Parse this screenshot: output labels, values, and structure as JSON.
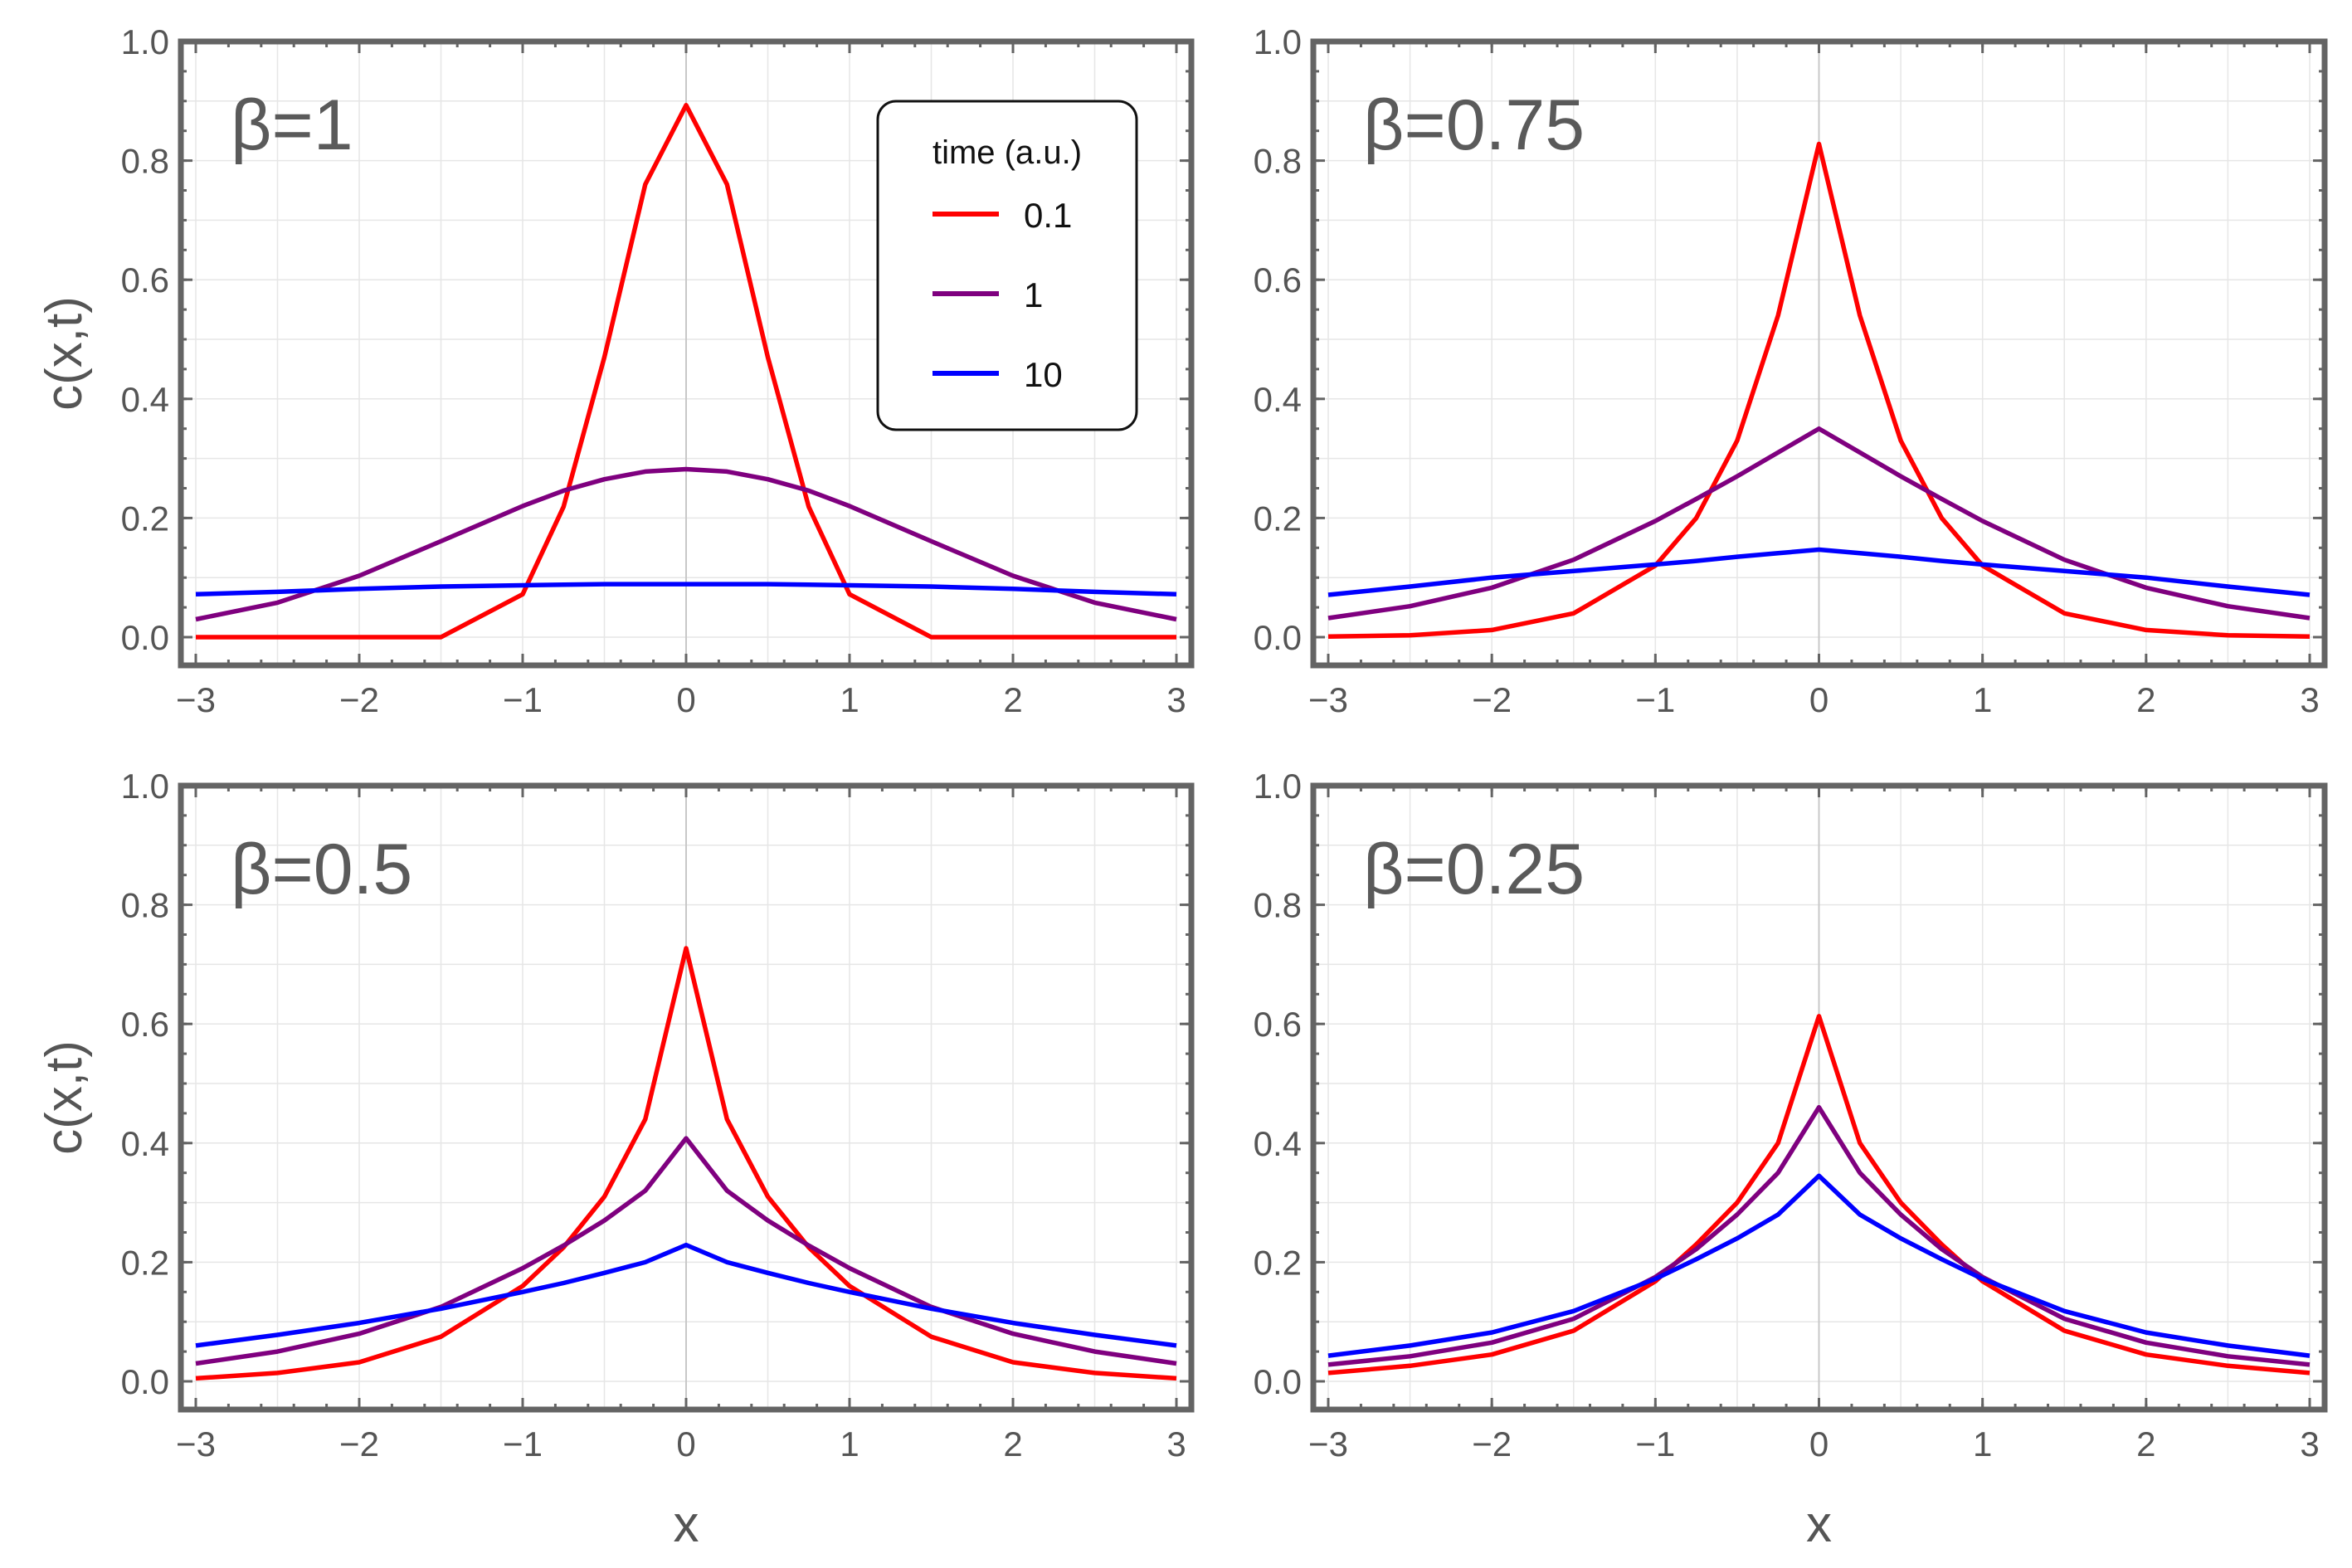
{
  "chart_data": [
    {
      "type": "line",
      "panel": "top-left",
      "label": "β=1",
      "beta": 1,
      "xlabel": "",
      "ylabel": "c(x,t)",
      "xlim": [
        -3,
        3
      ],
      "ylim": [
        0,
        1
      ],
      "xticks": [
        "−3",
        "−2",
        "−1",
        "0",
        "1",
        "2",
        "3"
      ],
      "yticks": [
        "0.0",
        "0.2",
        "0.4",
        "0.6",
        "0.8",
        "1.0"
      ],
      "x": [
        -3,
        -2.5,
        -2,
        -1.5,
        -1,
        -0.75,
        -0.5,
        -0.25,
        0,
        0.25,
        0.5,
        0.75,
        1,
        1.5,
        2,
        2.5,
        3
      ],
      "series": [
        {
          "name": "0.1",
          "color": "#ff0000",
          "values": [
            0.0,
            0.0,
            0.0,
            0.0,
            0.072,
            0.219,
            0.47,
            0.76,
            0.893,
            0.76,
            0.47,
            0.219,
            0.072,
            0.0,
            0.0,
            0.0,
            0.0
          ]
        },
        {
          "name": "1",
          "color": "#7f007f",
          "values": [
            0.03,
            0.058,
            0.103,
            0.161,
            0.22,
            0.246,
            0.265,
            0.278,
            0.282,
            0.278,
            0.265,
            0.246,
            0.22,
            0.161,
            0.103,
            0.058,
            0.03
          ]
        },
        {
          "name": "10",
          "color": "#0000ff",
          "values": [
            0.072,
            0.076,
            0.081,
            0.085,
            0.087,
            0.088,
            0.089,
            0.089,
            0.089,
            0.089,
            0.089,
            0.088,
            0.087,
            0.085,
            0.081,
            0.076,
            0.072
          ]
        }
      ]
    },
    {
      "type": "line",
      "panel": "top-right",
      "label": "β=0.75",
      "beta": 0.75,
      "xlabel": "",
      "ylabel": "",
      "xlim": [
        -3,
        3
      ],
      "ylim": [
        0,
        1
      ],
      "xticks": [
        "−3",
        "−2",
        "−1",
        "0",
        "1",
        "2",
        "3"
      ],
      "yticks": [
        "0.0",
        "0.2",
        "0.4",
        "0.6",
        "0.8",
        "1.0"
      ],
      "x": [
        -3,
        -2.5,
        -2,
        -1.5,
        -1,
        -0.75,
        -0.5,
        -0.25,
        0,
        0.25,
        0.5,
        0.75,
        1,
        1.5,
        2,
        2.5,
        3
      ],
      "series": [
        {
          "name": "0.1",
          "color": "#ff0000",
          "values": [
            0.001,
            0.003,
            0.012,
            0.04,
            0.12,
            0.2,
            0.33,
            0.54,
            0.828,
            0.54,
            0.33,
            0.2,
            0.12,
            0.04,
            0.012,
            0.003,
            0.001
          ]
        },
        {
          "name": "1",
          "color": "#7f007f",
          "values": [
            0.032,
            0.052,
            0.083,
            0.13,
            0.195,
            0.232,
            0.27,
            0.31,
            0.35,
            0.31,
            0.27,
            0.232,
            0.195,
            0.13,
            0.083,
            0.052,
            0.032
          ]
        },
        {
          "name": "10",
          "color": "#0000ff",
          "values": [
            0.071,
            0.085,
            0.1,
            0.111,
            0.122,
            0.128,
            0.135,
            0.141,
            0.147,
            0.141,
            0.135,
            0.128,
            0.122,
            0.111,
            0.1,
            0.085,
            0.071
          ]
        }
      ]
    },
    {
      "type": "line",
      "panel": "bottom-left",
      "label": "β=0.5",
      "beta": 0.5,
      "xlabel": "x",
      "ylabel": "c(x,t)",
      "xlim": [
        -3,
        3
      ],
      "ylim": [
        0,
        1
      ],
      "xticks": [
        "−3",
        "−2",
        "−1",
        "0",
        "1",
        "2",
        "3"
      ],
      "yticks": [
        "0.0",
        "0.2",
        "0.4",
        "0.6",
        "0.8",
        "1.0"
      ],
      "x": [
        -3,
        -2.5,
        -2,
        -1.5,
        -1,
        -0.75,
        -0.5,
        -0.25,
        0,
        0.25,
        0.5,
        0.75,
        1,
        1.5,
        2,
        2.5,
        3
      ],
      "series": [
        {
          "name": "0.1",
          "color": "#ff0000",
          "values": [
            0.005,
            0.014,
            0.032,
            0.075,
            0.16,
            0.225,
            0.31,
            0.44,
            0.727,
            0.44,
            0.31,
            0.225,
            0.16,
            0.075,
            0.032,
            0.014,
            0.005
          ]
        },
        {
          "name": "1",
          "color": "#7f007f",
          "values": [
            0.03,
            0.05,
            0.08,
            0.125,
            0.19,
            0.228,
            0.27,
            0.32,
            0.408,
            0.32,
            0.27,
            0.228,
            0.19,
            0.125,
            0.08,
            0.05,
            0.03
          ]
        },
        {
          "name": "10",
          "color": "#0000ff",
          "values": [
            0.06,
            0.078,
            0.098,
            0.122,
            0.15,
            0.165,
            0.182,
            0.2,
            0.229,
            0.2,
            0.182,
            0.165,
            0.15,
            0.122,
            0.098,
            0.078,
            0.06
          ]
        }
      ]
    },
    {
      "type": "line",
      "panel": "bottom-right",
      "label": "β=0.25",
      "beta": 0.25,
      "xlabel": "x",
      "ylabel": "",
      "xlim": [
        -3,
        3
      ],
      "ylim": [
        0,
        1
      ],
      "xticks": [
        "−3",
        "−2",
        "−1",
        "0",
        "1",
        "2",
        "3"
      ],
      "yticks": [
        "0.0",
        "0.2",
        "0.4",
        "0.6",
        "0.8",
        "1.0"
      ],
      "x": [
        -3,
        -2.5,
        -2,
        -1.5,
        -1,
        -0.75,
        -0.5,
        -0.25,
        0,
        0.25,
        0.5,
        0.75,
        1,
        1.5,
        2,
        2.5,
        3
      ],
      "series": [
        {
          "name": "0.1",
          "color": "#ff0000",
          "values": [
            0.014,
            0.026,
            0.045,
            0.085,
            0.168,
            0.23,
            0.3,
            0.4,
            0.613,
            0.4,
            0.3,
            0.23,
            0.168,
            0.085,
            0.045,
            0.026,
            0.014
          ]
        },
        {
          "name": "1",
          "color": "#7f007f",
          "values": [
            0.028,
            0.042,
            0.065,
            0.105,
            0.175,
            0.222,
            0.28,
            0.35,
            0.46,
            0.35,
            0.28,
            0.222,
            0.175,
            0.105,
            0.065,
            0.042,
            0.028
          ]
        },
        {
          "name": "10",
          "color": "#0000ff",
          "values": [
            0.043,
            0.06,
            0.082,
            0.118,
            0.172,
            0.205,
            0.24,
            0.28,
            0.345,
            0.28,
            0.24,
            0.205,
            0.172,
            0.118,
            0.082,
            0.06,
            0.043
          ]
        }
      ]
    }
  ],
  "legend": {
    "title": "time (a.u.)",
    "placement": "top-right of top-left panel",
    "entries": [
      {
        "label": "0.1",
        "color": "#ff0000"
      },
      {
        "label": "1",
        "color": "#7f007f"
      },
      {
        "label": "10",
        "color": "#0000ff"
      }
    ]
  }
}
